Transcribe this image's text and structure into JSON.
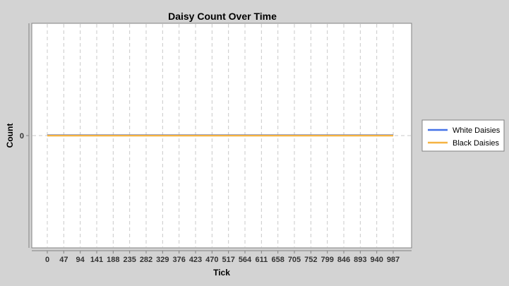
{
  "chart_data": {
    "type": "line",
    "title": "Daisy Count Over Time",
    "xlabel": "Tick",
    "ylabel": "Count",
    "x_ticks": [
      0,
      47,
      94,
      141,
      188,
      235,
      282,
      329,
      376,
      423,
      470,
      517,
      564,
      611,
      658,
      705,
      752,
      799,
      846,
      893,
      940,
      987
    ],
    "xlim": [
      0,
      987
    ],
    "y_ticks": [
      0
    ],
    "grid": true,
    "legend_position": "right",
    "series": [
      {
        "name": "White Daisies",
        "color": "#4472e8",
        "x": [
          0,
          987
        ],
        "y": [
          0,
          0
        ]
      },
      {
        "name": "Black Daisies",
        "color": "#f5b342",
        "x": [
          0,
          987
        ],
        "y": [
          0,
          0
        ]
      }
    ]
  }
}
